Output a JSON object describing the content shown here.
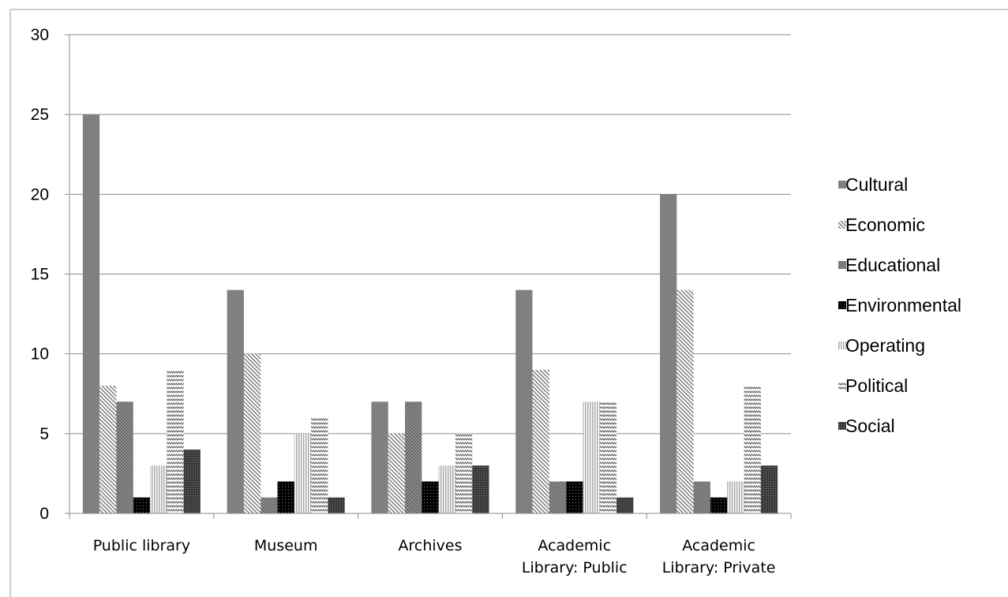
{
  "chart_data": {
    "type": "bar",
    "categories": [
      [
        "Public library"
      ],
      [
        "Museum"
      ],
      [
        "Archives"
      ],
      [
        "Academic",
        "Library: Public"
      ],
      [
        "Academic",
        "Library: Private"
      ]
    ],
    "series": [
      {
        "name": "Cultural",
        "values": [
          25,
          14,
          7,
          14,
          20
        ],
        "color": "#808080",
        "pattern": "solid"
      },
      {
        "name": "Economic",
        "values": [
          8,
          10,
          5,
          9,
          14
        ],
        "color": "#8c8c8c",
        "pattern": "diagonal-lines"
      },
      {
        "name": "Educational",
        "values": [
          7,
          1,
          7,
          2,
          2
        ],
        "color": "#6f6f6f",
        "pattern": "crosshatch"
      },
      {
        "name": "Environmental",
        "values": [
          1,
          2,
          2,
          2,
          1
        ],
        "color": "#111111",
        "pattern": "dots"
      },
      {
        "name": "Operating",
        "values": [
          3,
          5,
          3,
          7,
          2
        ],
        "color": "#bdbdbd",
        "pattern": "vertical-lines"
      },
      {
        "name": "Political",
        "values": [
          9,
          6,
          5,
          7,
          8
        ],
        "color": "#9a9a9a",
        "pattern": "zigzag"
      },
      {
        "name": "Social",
        "values": [
          4,
          1,
          3,
          1,
          3
        ],
        "color": "#4a4a4a",
        "pattern": "dense-dots"
      }
    ],
    "yticks": [
      0,
      5,
      10,
      15,
      20,
      25,
      30
    ],
    "ylim": [
      0,
      30
    ],
    "grid": true,
    "legend_position": "right"
  }
}
